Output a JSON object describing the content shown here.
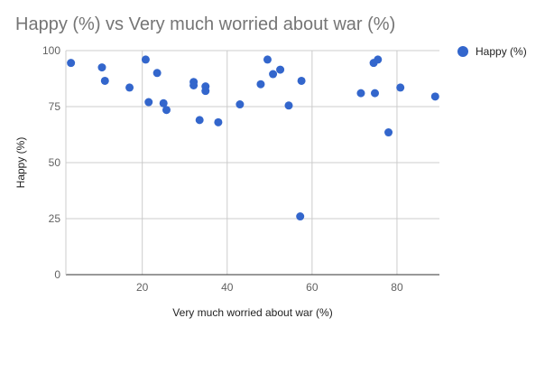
{
  "chart_data": {
    "type": "scatter",
    "title": "Happy (%) vs Very much worried about war (%)",
    "xlabel": "Very much worried about war (%)",
    "ylabel": "Happy (%)",
    "xlim": [
      2,
      90
    ],
    "ylim": [
      0,
      100
    ],
    "x_ticks": [
      20,
      40,
      60,
      80
    ],
    "y_ticks": [
      0,
      25,
      50,
      75,
      100
    ],
    "grid": true,
    "legend_position": "right",
    "series": [
      {
        "name": "Happy (%)",
        "color": "#3366cc",
        "points": [
          {
            "x": 3.2,
            "y": 94.5
          },
          {
            "x": 10.5,
            "y": 92.5
          },
          {
            "x": 11.2,
            "y": 86.5
          },
          {
            "x": 17.0,
            "y": 83.5
          },
          {
            "x": 20.8,
            "y": 96.0
          },
          {
            "x": 21.5,
            "y": 77.0
          },
          {
            "x": 23.5,
            "y": 90.0
          },
          {
            "x": 25.0,
            "y": 76.5
          },
          {
            "x": 25.7,
            "y": 73.5
          },
          {
            "x": 32.1,
            "y": 86.0
          },
          {
            "x": 32.1,
            "y": 84.5
          },
          {
            "x": 33.5,
            "y": 69.0
          },
          {
            "x": 34.9,
            "y": 84.0
          },
          {
            "x": 34.9,
            "y": 82.0
          },
          {
            "x": 37.9,
            "y": 68.0
          },
          {
            "x": 43.0,
            "y": 76.0
          },
          {
            "x": 47.9,
            "y": 85.0
          },
          {
            "x": 49.5,
            "y": 96.0
          },
          {
            "x": 50.8,
            "y": 89.5
          },
          {
            "x": 52.5,
            "y": 91.5
          },
          {
            "x": 54.5,
            "y": 75.5
          },
          {
            "x": 57.2,
            "y": 26.0
          },
          {
            "x": 57.5,
            "y": 86.5
          },
          {
            "x": 71.5,
            "y": 81.0
          },
          {
            "x": 74.5,
            "y": 94.5
          },
          {
            "x": 74.8,
            "y": 81.0
          },
          {
            "x": 75.5,
            "y": 96.0
          },
          {
            "x": 78.0,
            "y": 63.5
          },
          {
            "x": 80.8,
            "y": 83.5
          },
          {
            "x": 89.0,
            "y": 79.5
          }
        ]
      }
    ]
  }
}
